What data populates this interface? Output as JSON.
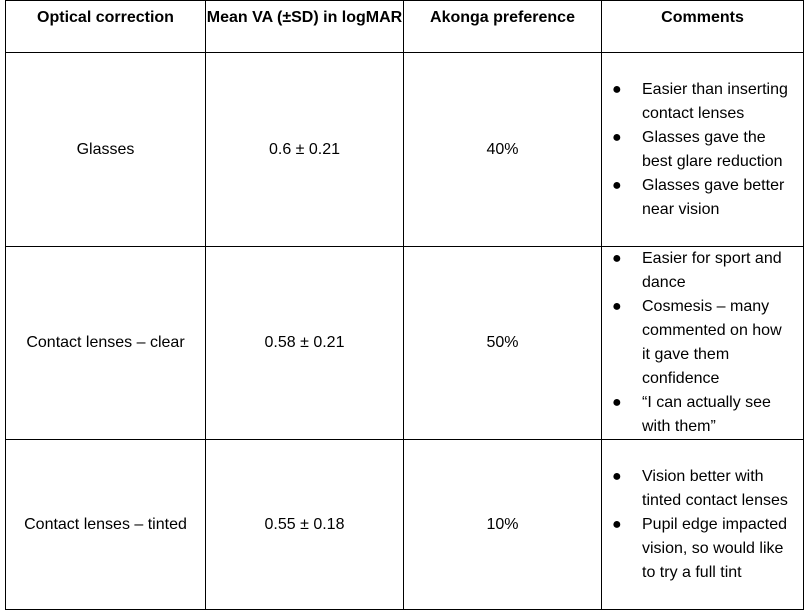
{
  "table": {
    "headers": [
      "Optical correction",
      "Mean VA (±SD) in logMAR",
      "Akonga preference",
      "Comments"
    ],
    "rows": [
      {
        "correction": "Glasses",
        "mean_va": "0.6 ± 0.21",
        "preference": "40%",
        "comments": [
          "Easier than inserting contact lenses",
          "Glasses gave the best glare reduction",
          "Glasses gave better near vision"
        ]
      },
      {
        "correction": "Contact lenses – clear",
        "mean_va": "0.58 ± 0.21",
        "preference": "50%",
        "comments": [
          "Easier for sport and dance",
          "Cosmesis – many commented on how it gave them confidence",
          "“I can actually see with them”"
        ]
      },
      {
        "correction": "Contact lenses – tinted",
        "mean_va": "0.55 ± 0.18",
        "preference": "10%",
        "comments": [
          "Vision better with tinted contact lenses",
          "Pupil edge impacted vision, so would like to try a full tint"
        ]
      }
    ]
  }
}
